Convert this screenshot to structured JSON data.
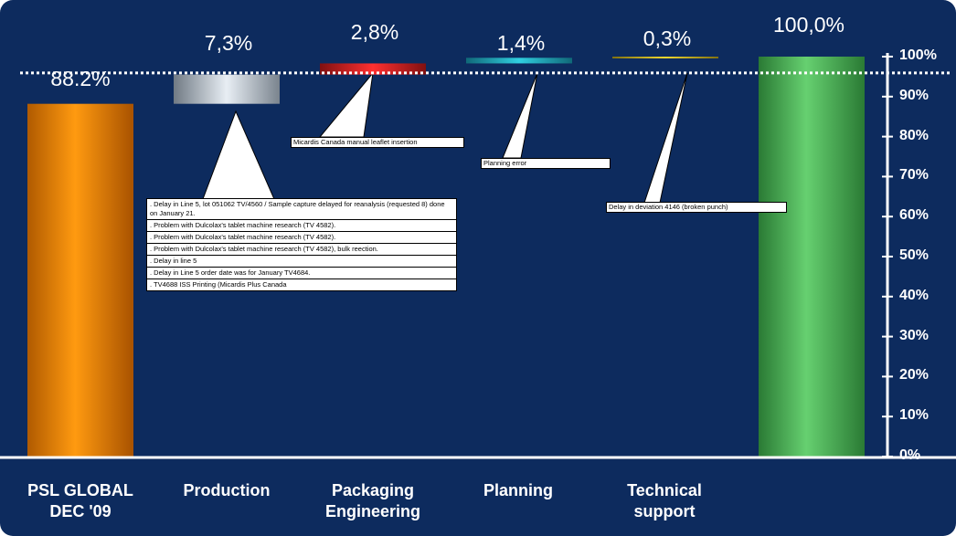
{
  "chart_data": {
    "type": "bar",
    "subtype": "waterfall",
    "categories": [
      "PSL GLOBAL\nDEC '09",
      "Production",
      "Packaging\nEngineering",
      "Planning",
      "Technical\nsupport",
      ""
    ],
    "values": [
      88.2,
      7.3,
      2.8,
      1.4,
      0.3,
      100.0
    ],
    "value_labels": [
      "88.2%",
      "7,3%",
      "2,8%",
      "1,4%",
      "0,3%",
      "100,0%"
    ],
    "ylim": [
      0,
      100
    ],
    "yticks": [
      "0%",
      "10%",
      "20%",
      "30%",
      "40%",
      "50%",
      "60%",
      "70%",
      "80%",
      "90%",
      "100%"
    ],
    "reference_line": 95,
    "grid": false,
    "colors": {
      "background": "#0d2b5e",
      "base_bar": "#ff8c00",
      "production": "#c8d0d8",
      "packaging": "#e02020",
      "planning": "#20b8c8",
      "technical": "#d8c020",
      "total_bar": "#58c060",
      "text": "#ffffff"
    },
    "annotations": {
      "production": [
        ". Delay in Line 5, lot 051062 TV/4560 / Sample capture delayed for reanalysis (requested 8) done on January 21.",
        ". Problem with Dulcolax's tablet machine research (TV 4582).",
        ". Problem with Dulcolax's tablet machine research (TV 4582).",
        ". Problem with Dulcolax's tablet machine research (TV 4582), bulk reection.",
        ". Delay in line 5",
        ". Delay in Line 5 order date was for January TV4684.",
        ". TV4688 ISS Printing (Micardis Plus Canada"
      ],
      "packaging": "Micardis Canada manual leaflet insertion",
      "planning": "Planning error",
      "technical": "Delay in deviation 4146 (broken punch)"
    }
  }
}
